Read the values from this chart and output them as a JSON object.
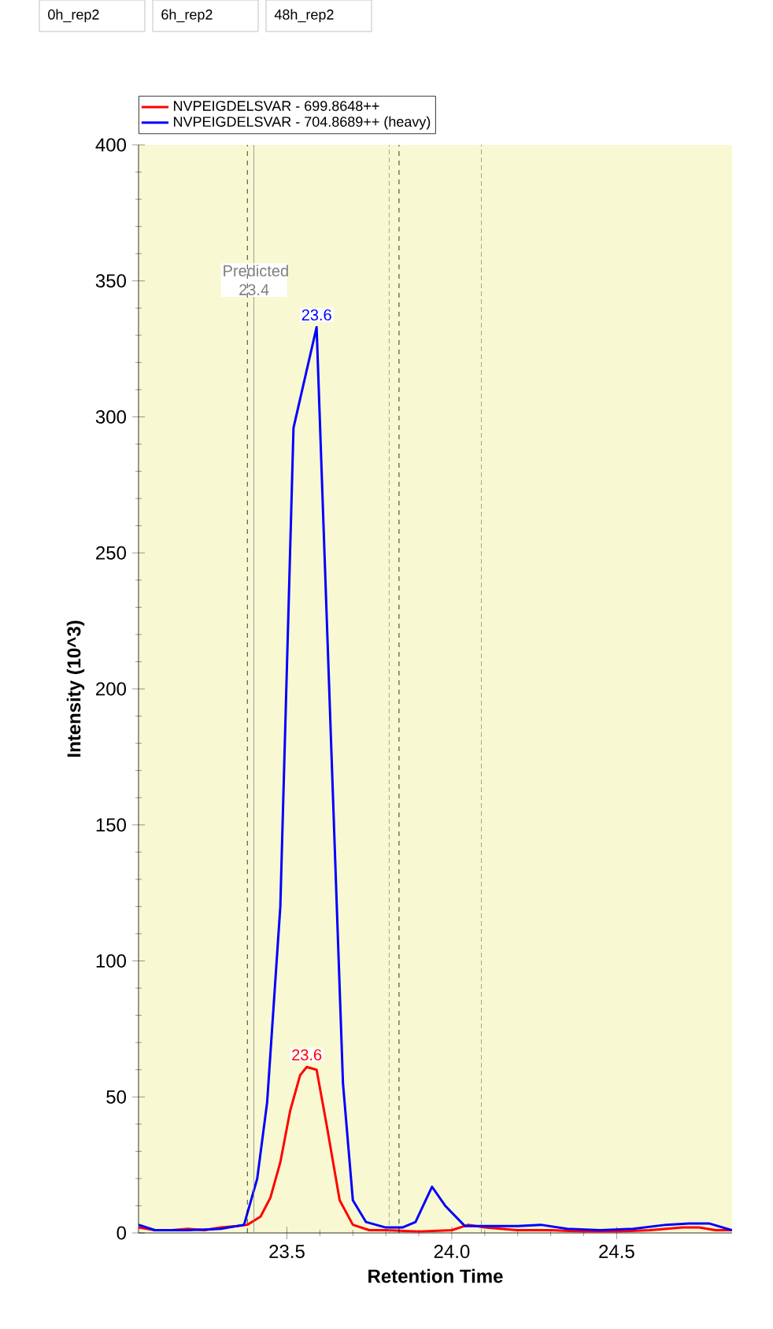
{
  "chart_data": {
    "type": "line",
    "xlabel": "Retention Time",
    "ylabel": "Intensity (10^3)",
    "xlim": [
      23.05,
      24.85
    ],
    "ylim": [
      0,
      400
    ],
    "xticks": [
      23.5,
      {
        "value": 24.0,
        "label": "24.0"
      },
      24.5
    ],
    "yticks": [
      0,
      50,
      100,
      150,
      200,
      250,
      300,
      350,
      400
    ],
    "legend": "top",
    "marker": "none",
    "line_style": "solid",
    "grid": false,
    "series": [
      {
        "name": "NVPEIGDELSVAR - 699.8648++",
        "color": "#ff0000",
        "x": [
          23.05,
          23.1,
          23.15,
          23.2,
          23.25,
          23.3,
          23.35,
          23.38,
          23.42,
          23.45,
          23.48,
          23.51,
          23.54,
          23.56,
          23.59,
          23.62,
          23.66,
          23.7,
          23.75,
          23.8,
          23.9,
          24.0,
          24.05,
          24.1,
          24.2,
          24.3,
          24.4,
          24.5,
          24.6,
          24.7,
          24.75,
          24.8,
          24.85
        ],
        "values": [
          2,
          1,
          1,
          1.5,
          1,
          2,
          2.5,
          3,
          6,
          13,
          26,
          45,
          58,
          61,
          60,
          40,
          12,
          3,
          1,
          1,
          0.5,
          1,
          3,
          2,
          1,
          1,
          0.5,
          0.5,
          1,
          2,
          2,
          1,
          1
        ]
      },
      {
        "name": "NVPEIGDELSVAR - 704.8689++ (heavy)",
        "color": "#0000ff",
        "x": [
          23.05,
          23.1,
          23.2,
          23.3,
          23.37,
          23.41,
          23.44,
          23.48,
          23.52,
          23.59,
          23.67,
          23.7,
          23.74,
          23.8,
          23.85,
          23.89,
          23.94,
          23.98,
          24.04,
          24.1,
          24.2,
          24.27,
          24.35,
          24.45,
          24.55,
          24.65,
          24.72,
          24.78,
          24.85
        ],
        "values": [
          3,
          1,
          1,
          1.5,
          3,
          20,
          48,
          120,
          296,
          333,
          55,
          12,
          4,
          2,
          2,
          4,
          17,
          10,
          2.5,
          2.5,
          2.5,
          3,
          1.5,
          1,
          1.5,
          3,
          3.5,
          3.5,
          1
        ]
      }
    ],
    "ref_lines": [
      {
        "axis": "x",
        "value": 23.4,
        "label": "Predicted 23.4",
        "color": "#808080",
        "line_style": "solid"
      },
      {
        "axis": "x",
        "value": 23.38,
        "line_style": "dashed",
        "color": "#000000"
      },
      {
        "axis": "x",
        "value": 23.84,
        "line_style": "dashed",
        "color": "#000000"
      },
      {
        "axis": "x",
        "value": 23.81,
        "line_style": "dotted",
        "color": "#808080"
      },
      {
        "axis": "x",
        "value": 24.09,
        "line_style": "dotted",
        "color": "#808080"
      }
    ],
    "annotations": [
      {
        "text": "23.6",
        "x": 23.56,
        "y": 61
      },
      {
        "text": "23.6",
        "x": 23.59,
        "y": 333
      },
      "0h_rep2",
      "6h_rep2",
      "48h_rep2"
    ]
  }
}
